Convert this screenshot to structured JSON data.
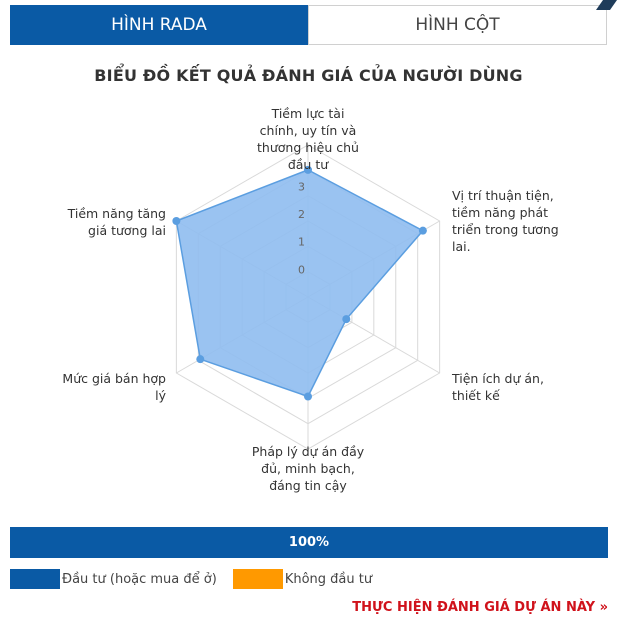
{
  "tabs": [
    {
      "label": "HÌNH RADA",
      "active": true
    },
    {
      "label": "HÌNH CỘT",
      "active": false
    }
  ],
  "chart_data": {
    "type": "radar",
    "title": "BIỂU ĐỒ KẾT QUẢ ĐÁNH GIÁ CỦA NGƯỜI DÙNG",
    "axes": [
      "Tiềm lực tài chính, uy tín và thương hiệu chủ đầu tư",
      "Vị trí thuận tiện, tiềm năng phát triển trong tương lai.",
      "Tiện ích dự án, thiết kế",
      "Pháp lý dự án đầy đủ, minh bạch, đáng tin cậy",
      "Mức giá bán hợp lý",
      "Tiềm năng tăng giá tương lai"
    ],
    "axis_label_lines": [
      [
        "Tiềm lực tài",
        "chính, uy tín và",
        "thương hiệu chủ",
        "đầu tư"
      ],
      [
        "Vị trí thuận tiện,",
        "tiềm năng phát",
        "triển trong tương",
        "lai."
      ],
      [
        "Tiện ích dự án,",
        "thiết kế"
      ],
      [
        "Pháp lý dự án đầy",
        "đủ, minh bạch,",
        "đáng tin cậy"
      ],
      [
        "Mức giá bán hợp",
        "lý"
      ],
      [
        "Tiềm năng tăng",
        "giá tương lai"
      ]
    ],
    "ticks": [
      "0",
      "1",
      "2",
      "3"
    ],
    "scale_min": -1,
    "scale_max": 4.5,
    "values": [
      3.6,
      3.8,
      0.6,
      2.6,
      3.5,
      4.5
    ],
    "fill_color": "#8fbdf0",
    "line_color": "#5b9ee0"
  },
  "progress": {
    "label": "100%",
    "value": 100,
    "color": "#0a5aa5"
  },
  "legend": [
    {
      "label": "Đầu tư (hoặc mua để ở)",
      "color": "#0a5aa5"
    },
    {
      "label": "Không đầu tư",
      "color": "#ff9900"
    }
  ],
  "cta": {
    "label": "THỰC HIỆN ĐÁNH GIÁ DỰ ÁN NÀY »",
    "color": "#d0121b"
  }
}
